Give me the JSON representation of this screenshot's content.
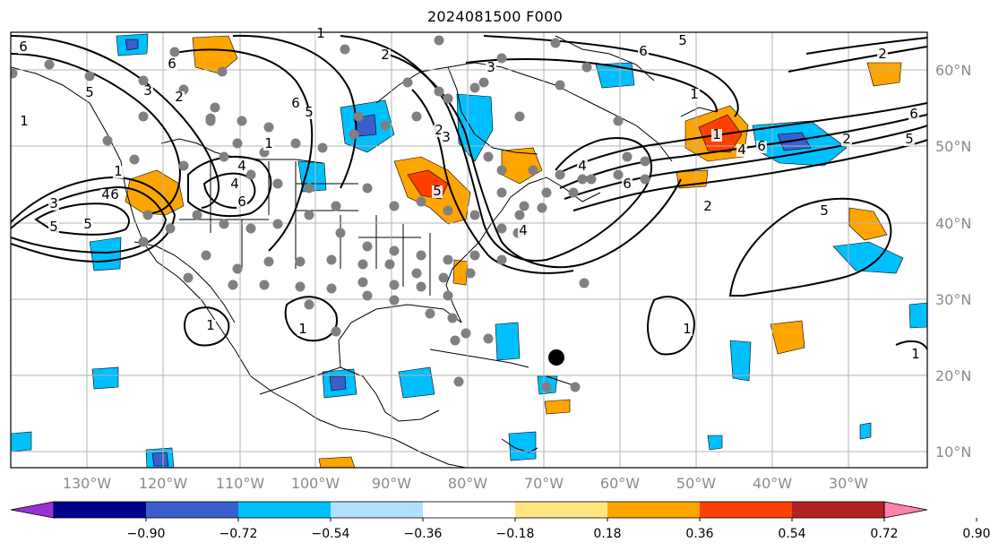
{
  "title": "2024081500 F000",
  "lon_labels": [
    "130°W",
    "120°W",
    "110°W",
    "100°W",
    "90°W",
    "80°W",
    "70°W",
    "60°W",
    "50°W",
    "40°W",
    "30°W"
  ],
  "lat_labels": [
    "60°N",
    "50°N",
    "40°N",
    "30°N",
    "20°N",
    "10°N"
  ],
  "colorbar": {
    "ticks": [
      "−0.90",
      "−0.72",
      "−0.54",
      "−0.36",
      "−0.18",
      "0.18",
      "0.36",
      "0.54",
      "0.72",
      "0.90"
    ],
    "colors": [
      "#9b30d9",
      "#00008b",
      "#3a5fcd",
      "#00bfff",
      "#b0e2ff",
      "#ffffff",
      "#ffe680",
      "#ffa500",
      "#ff4000",
      "#b22222",
      "#ff82ab"
    ]
  },
  "contour_labels": [
    "6",
    "1",
    "2",
    "6",
    "3",
    "2",
    "1",
    "5",
    "4",
    "1",
    "4",
    "6",
    "5",
    "5",
    "4",
    "6",
    "6",
    "5",
    "1",
    "3",
    "2",
    "3",
    "6",
    "5",
    "1",
    "4",
    "2",
    "6",
    "4",
    "1",
    "2",
    "6",
    "5",
    "4",
    "6",
    "5",
    "2",
    "3",
    "5",
    "1",
    "1",
    "1",
    "1"
  ],
  "colors": {
    "negative": "#00bfff",
    "positive": "#ffa500",
    "strong_positive": "#ff4000",
    "dots": "#808080",
    "marker": "#000000"
  }
}
